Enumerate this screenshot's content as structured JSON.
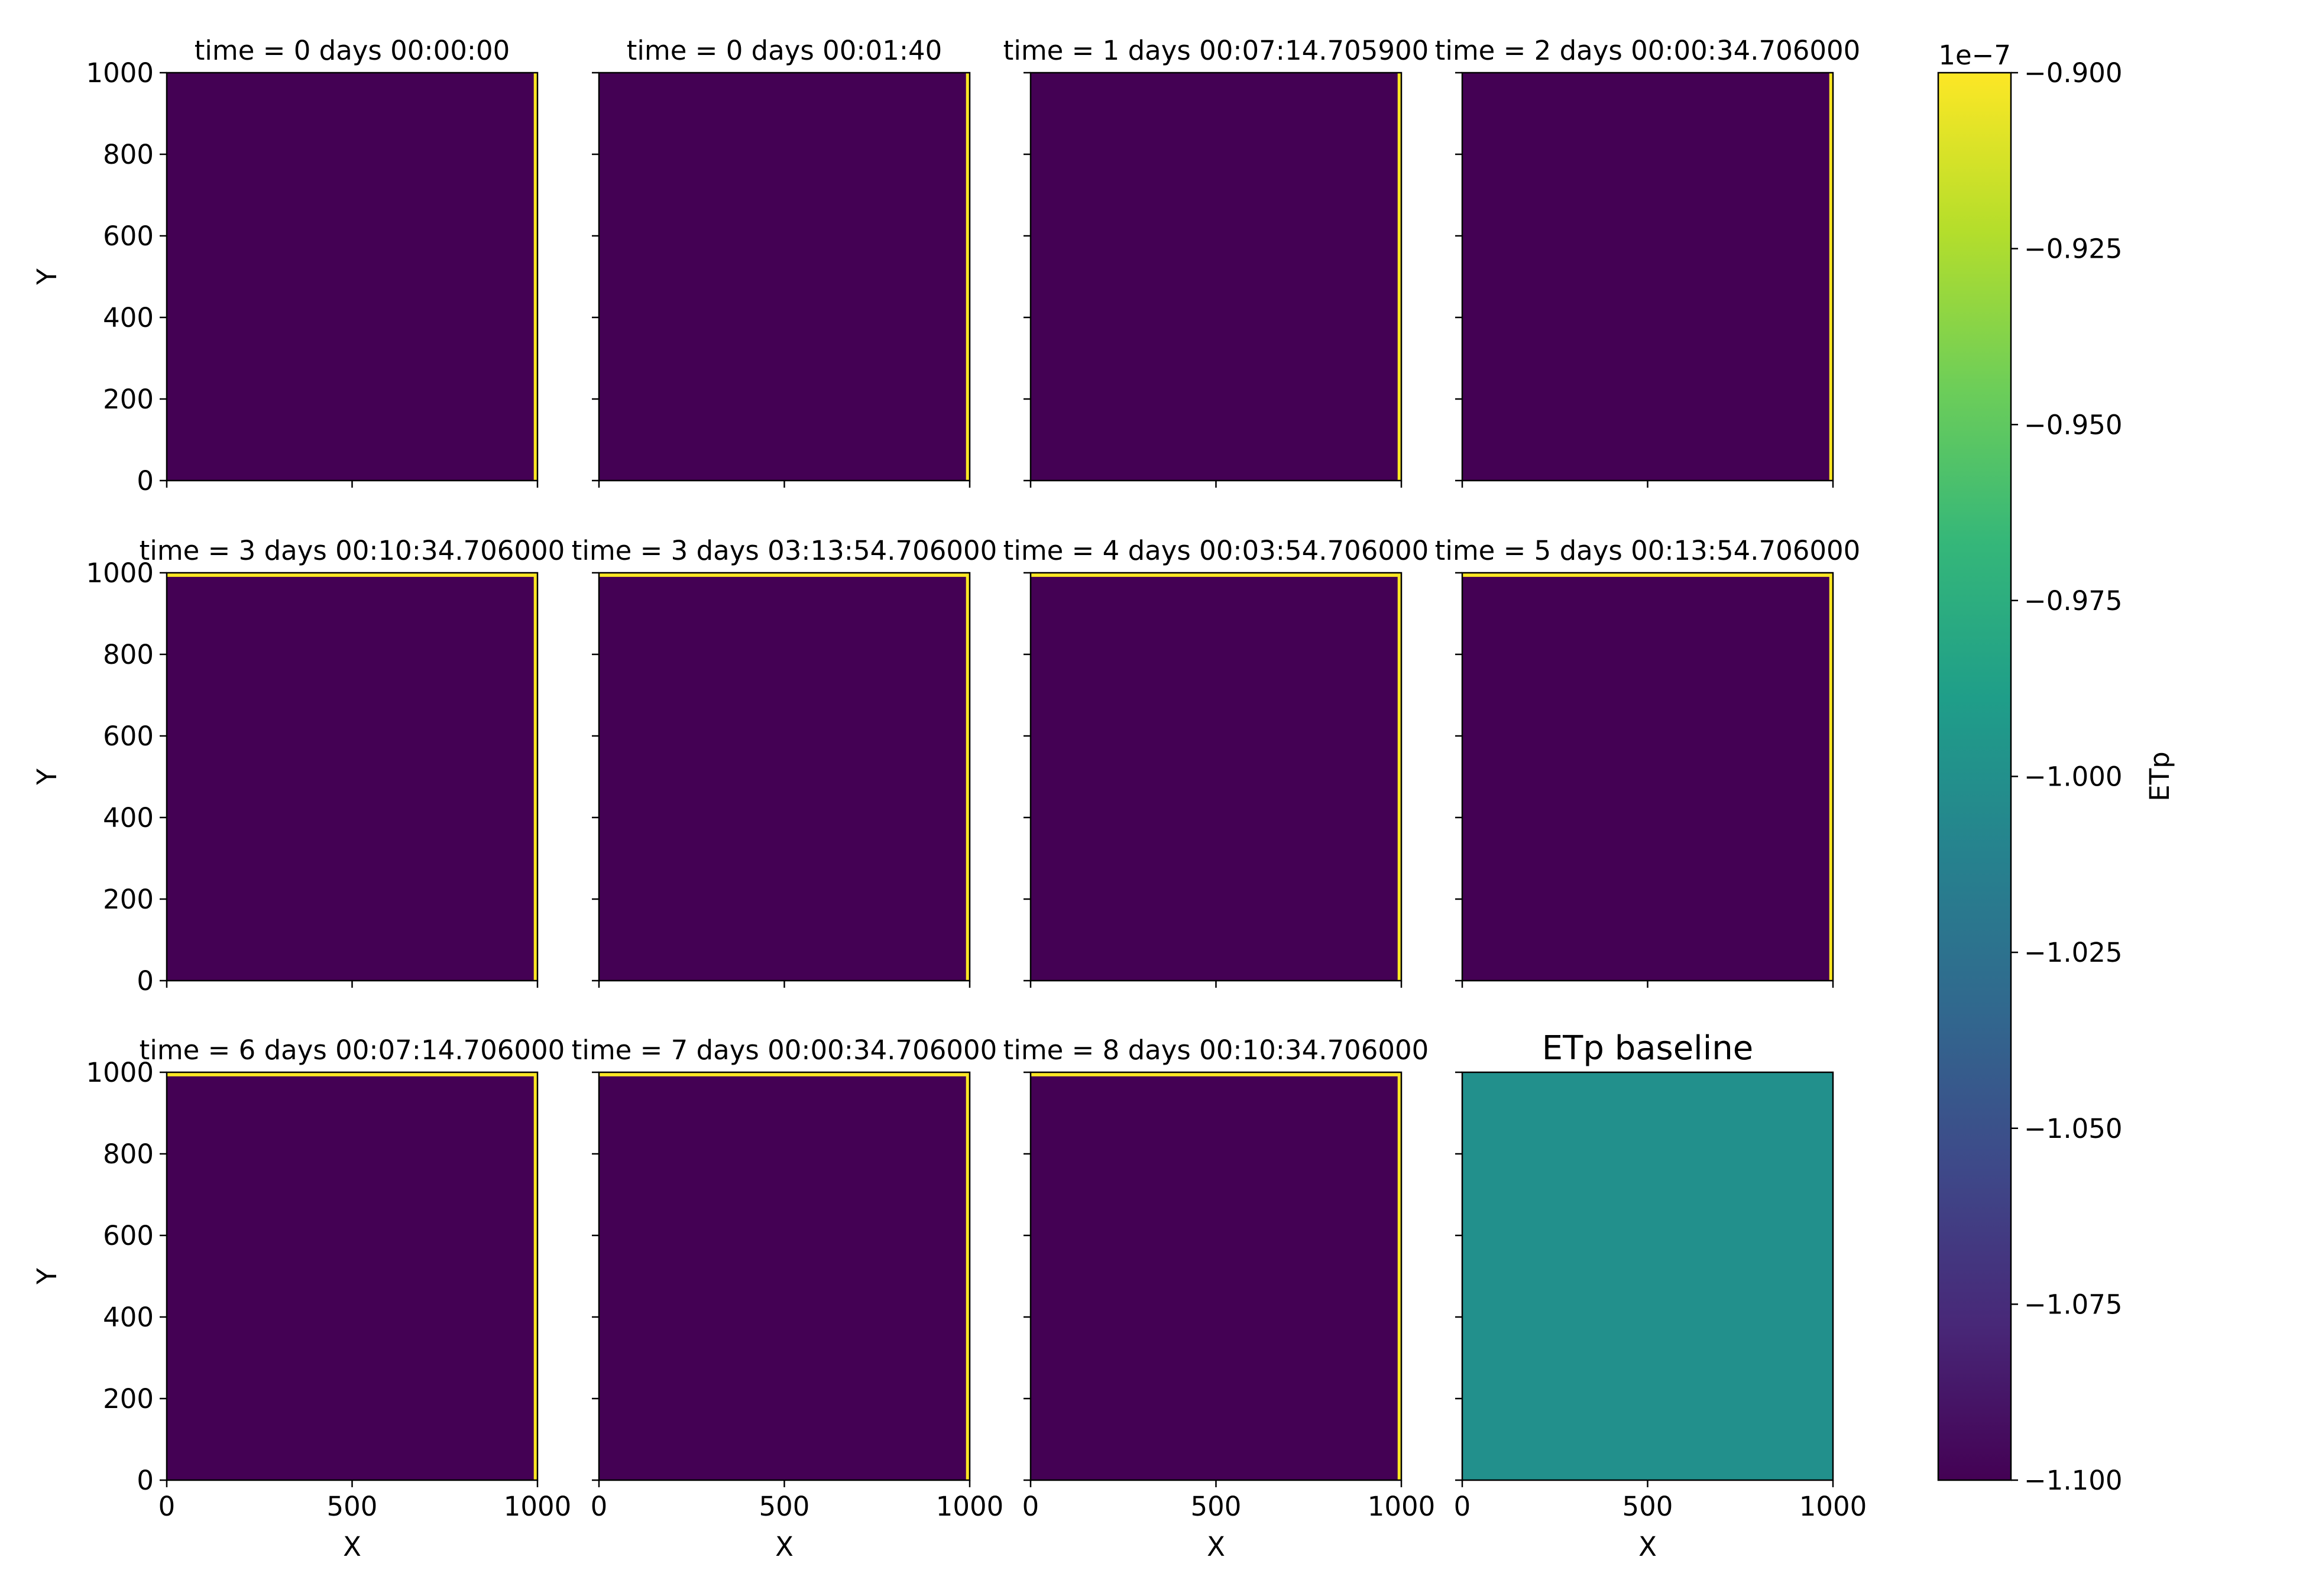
{
  "figure": {
    "background": "#ffffff",
    "colormap": "viridis",
    "colormap_colors": [
      "#440154",
      "#482878",
      "#3e4989",
      "#31688e",
      "#26828e",
      "#1f9e89",
      "#35b779",
      "#6ece58",
      "#b5de2b",
      "#fde725"
    ]
  },
  "chart_data": [
    {
      "type": "heatmap",
      "title": "time = 0 days 00:00:00",
      "xlabel": "",
      "ylabel": "Y",
      "xlim": [
        0,
        1000
      ],
      "ylim": [
        0,
        1000
      ],
      "xticks": [
        "0",
        "500",
        "1000"
      ],
      "yticks": [
        "0",
        "200",
        "400",
        "600",
        "800",
        "1000"
      ],
      "show_xticklabels": false,
      "show_yticklabels": true,
      "fill_value": -1.1e-07,
      "edge_value": -9e-08,
      "edge_sides": [
        "right"
      ],
      "cmap": "viridis"
    },
    {
      "type": "heatmap",
      "title": "time = 0 days 00:01:40",
      "xlabel": "",
      "ylabel": "",
      "xlim": [
        0,
        1000
      ],
      "ylim": [
        0,
        1000
      ],
      "xticks": [
        "0",
        "500",
        "1000"
      ],
      "yticks": [
        "0",
        "200",
        "400",
        "600",
        "800",
        "1000"
      ],
      "show_xticklabels": false,
      "show_yticklabels": false,
      "fill_value": -1.1e-07,
      "edge_value": -9e-08,
      "edge_sides": [
        "right"
      ],
      "cmap": "viridis"
    },
    {
      "type": "heatmap",
      "title": "time = 1 days 00:07:14.705900",
      "xlabel": "",
      "ylabel": "",
      "xlim": [
        0,
        1000
      ],
      "ylim": [
        0,
        1000
      ],
      "xticks": [
        "0",
        "500",
        "1000"
      ],
      "yticks": [
        "0",
        "200",
        "400",
        "600",
        "800",
        "1000"
      ],
      "show_xticklabels": false,
      "show_yticklabels": false,
      "fill_value": -1.1e-07,
      "edge_value": -9e-08,
      "edge_sides": [
        "right"
      ],
      "cmap": "viridis"
    },
    {
      "type": "heatmap",
      "title": "time = 2 days 00:00:34.706000",
      "xlabel": "",
      "ylabel": "",
      "xlim": [
        0,
        1000
      ],
      "ylim": [
        0,
        1000
      ],
      "xticks": [
        "0",
        "500",
        "1000"
      ],
      "yticks": [
        "0",
        "200",
        "400",
        "600",
        "800",
        "1000"
      ],
      "show_xticklabels": false,
      "show_yticklabels": false,
      "fill_value": -1.1e-07,
      "edge_value": -9e-08,
      "edge_sides": [
        "right"
      ],
      "cmap": "viridis"
    },
    {
      "type": "heatmap",
      "title": "time = 3 days 00:10:34.706000",
      "xlabel": "",
      "ylabel": "Y",
      "xlim": [
        0,
        1000
      ],
      "ylim": [
        0,
        1000
      ],
      "xticks": [
        "0",
        "500",
        "1000"
      ],
      "yticks": [
        "0",
        "200",
        "400",
        "600",
        "800",
        "1000"
      ],
      "show_xticklabels": false,
      "show_yticklabels": true,
      "fill_value": -1.1e-07,
      "edge_value": -9e-08,
      "edge_sides": [
        "right",
        "top"
      ],
      "cmap": "viridis"
    },
    {
      "type": "heatmap",
      "title": "time = 3 days 03:13:54.706000",
      "xlabel": "",
      "ylabel": "",
      "xlim": [
        0,
        1000
      ],
      "ylim": [
        0,
        1000
      ],
      "xticks": [
        "0",
        "500",
        "1000"
      ],
      "yticks": [
        "0",
        "200",
        "400",
        "600",
        "800",
        "1000"
      ],
      "show_xticklabels": false,
      "show_yticklabels": false,
      "fill_value": -1.1e-07,
      "edge_value": -9e-08,
      "edge_sides": [
        "right",
        "top"
      ],
      "cmap": "viridis"
    },
    {
      "type": "heatmap",
      "title": "time = 4 days 00:03:54.706000",
      "xlabel": "",
      "ylabel": "",
      "xlim": [
        0,
        1000
      ],
      "ylim": [
        0,
        1000
      ],
      "xticks": [
        "0",
        "500",
        "1000"
      ],
      "yticks": [
        "0",
        "200",
        "400",
        "600",
        "800",
        "1000"
      ],
      "show_xticklabels": false,
      "show_yticklabels": false,
      "fill_value": -1.1e-07,
      "edge_value": -9e-08,
      "edge_sides": [
        "right",
        "top"
      ],
      "cmap": "viridis"
    },
    {
      "type": "heatmap",
      "title": "time = 5 days 00:13:54.706000",
      "xlabel": "",
      "ylabel": "",
      "xlim": [
        0,
        1000
      ],
      "ylim": [
        0,
        1000
      ],
      "xticks": [
        "0",
        "500",
        "1000"
      ],
      "yticks": [
        "0",
        "200",
        "400",
        "600",
        "800",
        "1000"
      ],
      "show_xticklabels": false,
      "show_yticklabels": false,
      "fill_value": -1.1e-07,
      "edge_value": -9e-08,
      "edge_sides": [
        "right",
        "top"
      ],
      "cmap": "viridis"
    },
    {
      "type": "heatmap",
      "title": "time = 6 days 00:07:14.706000",
      "xlabel": "X",
      "ylabel": "Y",
      "xlim": [
        0,
        1000
      ],
      "ylim": [
        0,
        1000
      ],
      "xticks": [
        "0",
        "500",
        "1000"
      ],
      "yticks": [
        "0",
        "200",
        "400",
        "600",
        "800",
        "1000"
      ],
      "show_xticklabels": true,
      "show_yticklabels": true,
      "fill_value": -1.1e-07,
      "edge_value": -9e-08,
      "edge_sides": [
        "right",
        "top"
      ],
      "cmap": "viridis"
    },
    {
      "type": "heatmap",
      "title": "time = 7 days 00:00:34.706000",
      "xlabel": "X",
      "ylabel": "",
      "xlim": [
        0,
        1000
      ],
      "ylim": [
        0,
        1000
      ],
      "xticks": [
        "0",
        "500",
        "1000"
      ],
      "yticks": [
        "0",
        "200",
        "400",
        "600",
        "800",
        "1000"
      ],
      "show_xticklabels": true,
      "show_yticklabels": false,
      "fill_value": -1.1e-07,
      "edge_value": -9e-08,
      "edge_sides": [
        "right",
        "top"
      ],
      "cmap": "viridis"
    },
    {
      "type": "heatmap",
      "title": "time = 8 days 00:10:34.706000",
      "xlabel": "X",
      "ylabel": "",
      "xlim": [
        0,
        1000
      ],
      "ylim": [
        0,
        1000
      ],
      "xticks": [
        "0",
        "500",
        "1000"
      ],
      "yticks": [
        "0",
        "200",
        "400",
        "600",
        "800",
        "1000"
      ],
      "show_xticklabels": true,
      "show_yticklabels": false,
      "fill_value": -1.1e-07,
      "edge_value": -9e-08,
      "edge_sides": [
        "right",
        "top"
      ],
      "cmap": "viridis"
    },
    {
      "type": "heatmap",
      "title": "ETp baseline",
      "xlabel": "X",
      "ylabel": "",
      "xlim": [
        0,
        1000
      ],
      "ylim": [
        0,
        1000
      ],
      "xticks": [
        "0",
        "500",
        "1000"
      ],
      "yticks": [
        "0",
        "200",
        "400",
        "600",
        "800",
        "1000"
      ],
      "show_xticklabels": true,
      "show_yticklabels": false,
      "fill_value": -1e-07,
      "edge_value": null,
      "edge_sides": [],
      "cmap": "viridis"
    }
  ],
  "colorbar": {
    "label": "ETp",
    "offset_text": "1e−7",
    "range": [
      -1.1,
      -0.9
    ],
    "ticks": [
      -0.9,
      -0.925,
      -0.95,
      -0.975,
      -1.0,
      -1.025,
      -1.05,
      -1.075,
      -1.1
    ],
    "tick_labels": [
      "−0.900",
      "−0.925",
      "−0.950",
      "−0.975",
      "−1.000",
      "−1.025",
      "−1.050",
      "−1.075",
      "−1.100"
    ]
  }
}
